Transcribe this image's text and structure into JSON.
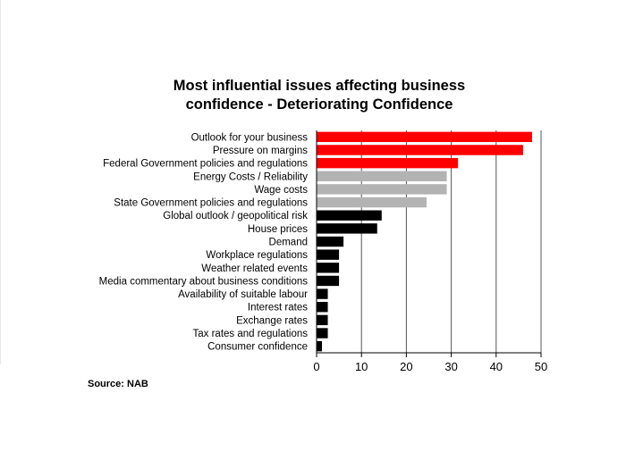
{
  "chart_data": {
    "type": "bar",
    "orientation": "horizontal",
    "title": [
      "Most influential issues affecting business",
      "confidence - Deteriorating Confidence"
    ],
    "categories": [
      "Outlook for your business",
      "Pressure on margins",
      "Federal Government policies and regulations",
      "Energy Costs / Reliability",
      "Wage costs",
      "State Government policies and regulations",
      "Global outlook / geopolitical risk",
      "House prices",
      "Demand",
      "Workplace regulations",
      "Weather related events",
      "Media commentary about business conditions",
      "Availability of suitable labour",
      "Interest rates",
      "Exchange rates",
      "Tax rates and regulations",
      "Consumer confidence"
    ],
    "values": [
      48,
      46,
      31.5,
      29,
      29,
      24.5,
      14.5,
      13.5,
      6,
      5,
      5,
      5,
      2.5,
      2.5,
      2.5,
      2.5,
      1.2
    ],
    "bar_colors": [
      "#ff0000",
      "#ff0000",
      "#ff0000",
      "#b3b3b3",
      "#b3b3b3",
      "#b3b3b3",
      "#000000",
      "#000000",
      "#000000",
      "#000000",
      "#000000",
      "#000000",
      "#000000",
      "#000000",
      "#000000",
      "#000000",
      "#000000"
    ],
    "xlim": [
      0,
      50
    ],
    "xticks": [
      0,
      10,
      20,
      30,
      40,
      50
    ],
    "grid": "vertical",
    "legend": "none",
    "source": "Source: NAB"
  }
}
